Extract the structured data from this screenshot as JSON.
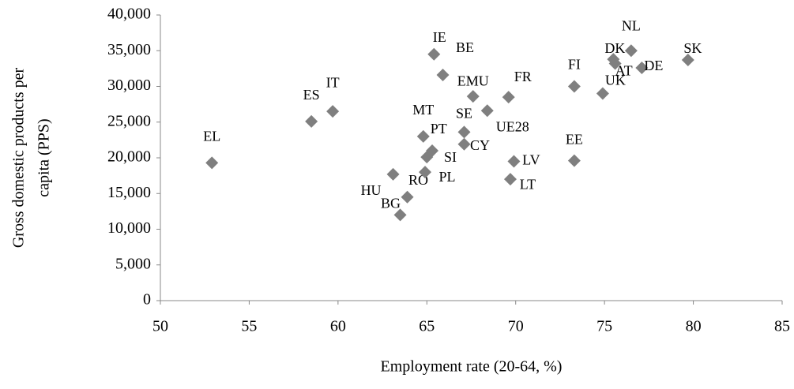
{
  "chart_data": {
    "type": "scatter",
    "x_label": "Employment rate (20-64, %)",
    "y_label_lines": [
      "Gross domestic products per",
      "capita (PPS)"
    ],
    "xlim": [
      50,
      85
    ],
    "xticks": [
      50,
      55,
      60,
      65,
      70,
      75,
      80,
      85
    ],
    "ylim": [
      0,
      40000
    ],
    "yticks": [
      0,
      {
        "value": 5000,
        "label": "5,000"
      },
      {
        "value": 10000,
        "label": "10,000"
      },
      {
        "value": 15000,
        "label": "15,000"
      },
      {
        "value": 20000,
        "label": "20,000"
      },
      {
        "value": 25000,
        "label": "25,000"
      },
      {
        "value": 30000,
        "label": "30,000"
      },
      {
        "value": 35000,
        "label": "35,000"
      },
      {
        "value": 40000,
        "label": "40,000"
      }
    ],
    "color": "#7f7f7f",
    "labels": [
      "EL",
      "ES",
      "IT",
      "IE",
      "BE",
      "HU",
      "RO",
      "BG",
      "PL",
      "MT",
      "PT",
      "SI",
      "SE",
      "CY",
      "EMU",
      "UE28",
      "FR",
      "LV",
      "LT",
      "EE",
      "FI",
      "UK",
      "DK",
      "AT",
      "NL",
      "DE",
      "SK"
    ],
    "x": [
      52.9,
      58.5,
      59.7,
      65.4,
      65.9,
      63.1,
      63.9,
      63.5,
      64.9,
      64.8,
      65.0,
      65.3,
      67.1,
      67.1,
      67.6,
      68.4,
      69.6,
      69.9,
      69.7,
      73.3,
      73.3,
      74.9,
      75.5,
      75.6,
      76.5,
      77.1,
      79.7
    ],
    "y": [
      19300,
      25100,
      26500,
      34500,
      31600,
      17700,
      14500,
      12000,
      18000,
      23000,
      20100,
      21000,
      23600,
      21900,
      28600,
      26600,
      28500,
      19500,
      17000,
      19600,
      30000,
      29000,
      33800,
      33200,
      35000,
      32600,
      33700
    ]
  }
}
